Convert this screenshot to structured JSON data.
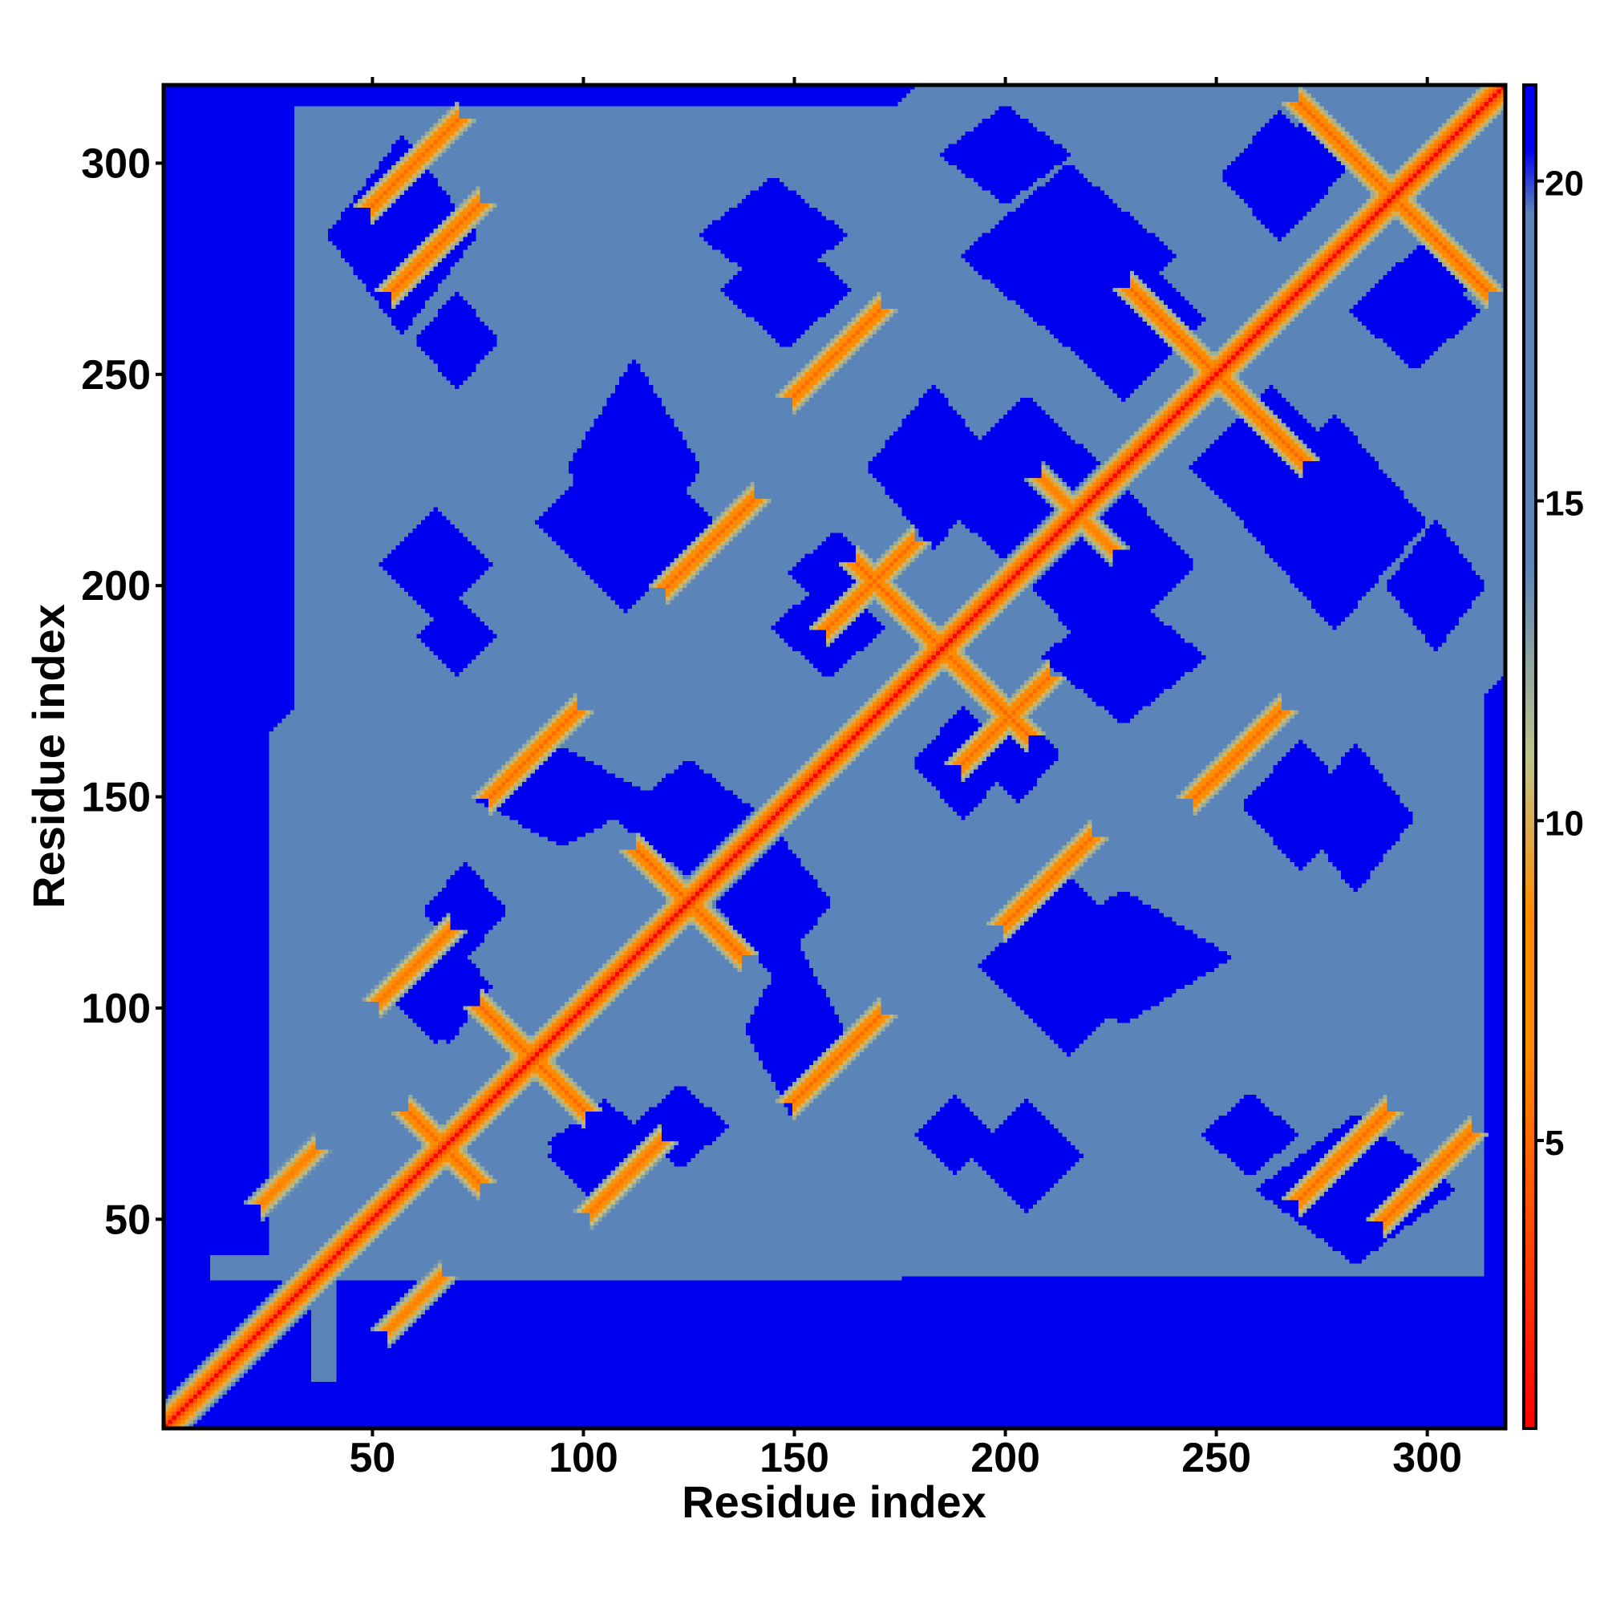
{
  "chart_data": {
    "type": "heatmap",
    "title": "",
    "xlabel": "Residue index",
    "ylabel": "Residue index",
    "xlim": [
      1,
      318
    ],
    "ylim": [
      1,
      318
    ],
    "x_ticks": [
      50,
      100,
      150,
      200,
      250,
      300
    ],
    "y_ticks": [
      50,
      100,
      150,
      200,
      250,
      300
    ],
    "colorbar": {
      "range": [
        0.5,
        21.5
      ],
      "ticks": [
        5,
        10,
        15,
        20
      ],
      "colors": {
        "min": "#ff0000",
        "orange": "#ff8c00",
        "yellow_green": "#bfc48a",
        "mid": "#5b84b8",
        "max": "#0000f0"
      }
    },
    "background_value": 21,
    "diagonal_values": [
      0,
      3.8,
      5.5,
      8,
      10,
      12,
      14
    ],
    "contact_features": [
      {
        "kind": "antiparallel",
        "center": [
          67,
          67
        ],
        "length": 8,
        "value": 5
      },
      {
        "kind": "antiparallel",
        "center": [
          88,
          88
        ],
        "length": 12,
        "value": 4.8
      },
      {
        "kind": "antiparallel",
        "center": [
          125,
          125
        ],
        "length": 12,
        "value": 4.8
      },
      {
        "kind": "antiparallel",
        "center": [
          185,
          185
        ],
        "length": 20,
        "value": 4.8
      },
      {
        "kind": "antiparallel",
        "center": [
          217,
          217
        ],
        "length": 8,
        "value": 6
      },
      {
        "kind": "antiparallel",
        "center": [
          250,
          250
        ],
        "length": 20,
        "value": 4.8
      },
      {
        "kind": "antiparallel",
        "center": [
          292,
          292
        ],
        "length": 22,
        "value": 4.8
      },
      {
        "kind": "parallel",
        "center": [
          88,
          160
        ],
        "length": 10,
        "value": 5
      },
      {
        "kind": "parallel",
        "center": [
          130,
          210
        ],
        "length": 10,
        "value": 5
      },
      {
        "kind": "parallel",
        "center": [
          168,
          200
        ],
        "length": 10,
        "value": 5
      },
      {
        "kind": "parallel",
        "center": [
          160,
          255
        ],
        "length": 10,
        "value": 5
      },
      {
        "kind": "parallel",
        "center": [
          60,
          300
        ],
        "length": 10,
        "value": 5
      },
      {
        "kind": "parallel",
        "center": [
          280,
          65
        ],
        "length": 10,
        "value": 5
      },
      {
        "kind": "parallel",
        "center": [
          60,
          110
        ],
        "length": 8,
        "value": 5.5
      },
      {
        "kind": "parallel",
        "center": [
          30,
          60
        ],
        "length": 6,
        "value": 6
      }
    ],
    "void_regions": [
      {
        "center": [
          57,
          283
        ],
        "size": [
          18,
          24
        ]
      },
      {
        "center": [
          110,
          215
        ],
        "size": [
          22,
          22
        ]
      },
      {
        "center": [
          65,
          205
        ],
        "size": [
          14,
          14
        ]
      },
      {
        "center": [
          95,
          150
        ],
        "size": [
          22,
          12
        ]
      },
      {
        "center": [
          65,
          105
        ],
        "size": [
          14,
          14
        ]
      },
      {
        "center": [
          105,
          68
        ],
        "size": [
          14,
          10
        ]
      },
      {
        "center": [
          145,
          283
        ],
        "size": [
          18,
          14
        ]
      },
      {
        "center": [
          183,
          228
        ],
        "size": [
          16,
          20
        ]
      },
      {
        "center": [
          160,
          203
        ],
        "size": [
          12,
          10
        ]
      },
      {
        "center": [
          190,
          158
        ],
        "size": [
          12,
          14
        ]
      },
      {
        "center": [
          145,
          125
        ],
        "size": [
          14,
          18
        ]
      },
      {
        "center": [
          123,
          72
        ],
        "size": [
          12,
          10
        ]
      },
      {
        "center": [
          263,
          228
        ],
        "size": [
          20,
          20
        ]
      },
      {
        "center": [
          215,
          278
        ],
        "size": [
          26,
          22
        ]
      },
      {
        "center": [
          223,
          205
        ],
        "size": [
          22,
          24
        ]
      },
      {
        "center": [
          228,
          112
        ],
        "size": [
          26,
          16
        ]
      },
      {
        "center": [
          270,
          148
        ],
        "size": [
          14,
          16
        ]
      },
      {
        "center": [
          302,
          200
        ],
        "size": [
          12,
          16
        ]
      },
      {
        "center": [
          265,
          297
        ],
        "size": [
          14,
          16
        ]
      },
      {
        "center": [
          188,
          70
        ],
        "size": [
          10,
          10
        ]
      },
      {
        "center": [
          258,
          70
        ],
        "size": [
          12,
          10
        ]
      },
      {
        "center": [
          300,
          272
        ],
        "size": [
          12,
          10
        ]
      }
    ]
  }
}
